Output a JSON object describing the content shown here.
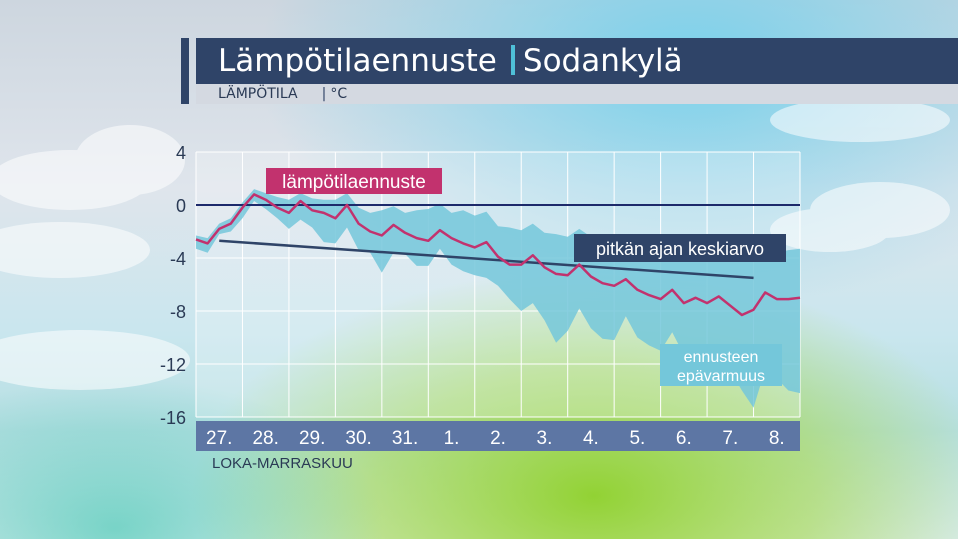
{
  "header": {
    "title": "Lämpötilaennuste",
    "location": "Sodankylä",
    "subtitle_quantity": "LÄMPÖTILA",
    "subtitle_unit": "°C"
  },
  "colors": {
    "title_bg": "#2f4468",
    "accent": "#4fc0d8",
    "forecast_line": "#c2326e",
    "average_line": "#2f4468",
    "uncertainty_band": "#74c7da",
    "zero_line": "#1d2a6b",
    "axis_strip": "#5d76a4"
  },
  "chart_data": {
    "type": "line",
    "x_categories": [
      "27.",
      "28.",
      "29.",
      "30.",
      "31.",
      "1.",
      "2.",
      "3.",
      "4.",
      "5.",
      "6.",
      "7.",
      "8."
    ],
    "xlabel": "LOKA-MARRASKUU",
    "ylabel": "°C",
    "ylim": [
      -16,
      4
    ],
    "yticks": [
      4,
      0,
      -4,
      -8,
      -12,
      -16
    ],
    "grid": true,
    "series": [
      {
        "name": "lämpötilaennuste",
        "x": [
          -0.5,
          -0.25,
          0,
          0.25,
          0.5,
          0.75,
          1,
          1.25,
          1.5,
          1.75,
          2,
          2.25,
          2.5,
          2.75,
          3,
          3.25,
          3.5,
          3.75,
          4,
          4.25,
          4.5,
          4.75,
          5,
          5.25,
          5.5,
          5.75,
          6,
          6.25,
          6.5,
          6.75,
          7,
          7.25,
          7.5,
          7.75,
          8,
          8.25,
          8.5,
          8.75,
          9,
          9.25,
          9.5,
          9.75,
          10,
          10.25,
          10.5,
          10.75,
          11,
          11.25,
          11.5,
          11.75,
          12,
          12.25,
          12.5
        ],
        "values": [
          -2.6,
          -2.9,
          -1.8,
          -1.4,
          -0.2,
          0.8,
          0.4,
          -0.2,
          -0.6,
          0.3,
          -0.4,
          -0.6,
          -1.0,
          0.0,
          -1.4,
          -2.0,
          -2.3,
          -1.5,
          -2.1,
          -2.5,
          -2.7,
          -1.9,
          -2.5,
          -2.9,
          -3.2,
          -2.8,
          -3.9,
          -4.5,
          -4.5,
          -3.8,
          -4.7,
          -5.2,
          -5.3,
          -4.5,
          -5.4,
          -5.9,
          -6.1,
          -5.6,
          -6.4,
          -6.8,
          -7.1,
          -6.4,
          -7.4,
          -7.0,
          -7.4,
          -6.9,
          -7.6,
          -8.3,
          -7.9,
          -6.6,
          -7.1,
          -7.1,
          -7.0
        ]
      },
      {
        "name": "pitkän ajan keskiarvo",
        "x": [
          0,
          11.5
        ],
        "values": [
          -2.7,
          -5.5
        ]
      }
    ],
    "band": {
      "name": "ennusteen epävarmuus",
      "x": [
        -0.5,
        -0.25,
        0,
        0.25,
        0.5,
        0.75,
        1,
        1.25,
        1.5,
        1.75,
        2,
        2.25,
        2.5,
        2.75,
        3,
        3.25,
        3.5,
        3.75,
        4,
        4.25,
        4.5,
        4.75,
        5,
        5.25,
        5.5,
        5.75,
        6,
        6.25,
        6.5,
        6.75,
        7,
        7.25,
        7.5,
        7.75,
        8,
        8.25,
        8.5,
        8.75,
        9,
        9.25,
        9.5,
        9.75,
        10,
        10.25,
        10.5,
        10.75,
        11,
        11.25,
        11.5,
        11.75,
        12,
        12.25,
        12.5
      ],
      "upper": [
        -2.3,
        -2.5,
        -1.4,
        -1.0,
        0.2,
        1.2,
        0.9,
        0.6,
        0.4,
        0.9,
        0.5,
        0.4,
        0.4,
        0.9,
        -0.2,
        -0.6,
        -0.4,
        -0.1,
        -0.6,
        -0.4,
        -0.3,
        0.1,
        -0.6,
        -0.4,
        -0.8,
        -0.5,
        -1.6,
        -1.7,
        -1.9,
        -1.4,
        -2.1,
        -2.2,
        -2.4,
        -1.8,
        -2.4,
        -2.6,
        -2.8,
        -2.4,
        -3.3,
        -3.2,
        -3.6,
        -3.1,
        -3.8,
        -3.4,
        -3.9,
        -3.4,
        -3.9,
        -4.1,
        -4.2,
        -3.6,
        -3.6,
        -3.4,
        -3.3
      ],
      "lower": [
        -3.3,
        -3.6,
        -2.2,
        -2.0,
        -1.0,
        0.3,
        -0.3,
        -1.0,
        -1.8,
        -1.1,
        -1.7,
        -2.8,
        -2.9,
        -1.7,
        -3.4,
        -3.6,
        -5.1,
        -3.6,
        -3.7,
        -4.6,
        -4.6,
        -3.3,
        -4.5,
        -5.0,
        -5.3,
        -5.5,
        -6.1,
        -7.1,
        -8.0,
        -7.4,
        -8.7,
        -10.4,
        -9.5,
        -7.8,
        -9.3,
        -10.1,
        -10.2,
        -8.4,
        -10.0,
        -10.6,
        -11.0,
        -9.6,
        -11.3,
        -11.6,
        -11.8,
        -11.4,
        -12.5,
        -14.0,
        -15.3,
        -12.4,
        -13.1,
        -14.0,
        -14.2
      ]
    },
    "annotations": {
      "forecast_label": "lämpötilaennuste",
      "average_label": "pitkän ajan keskiarvo",
      "uncertainty_label_line1": "ennusteen",
      "uncertainty_label_line2": "epävarmuus"
    }
  }
}
